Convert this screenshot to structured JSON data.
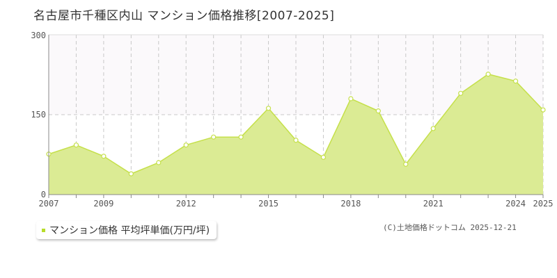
{
  "chart_data": {
    "type": "area",
    "title": "名古屋市千種区内山 マンション価格推移[2007-2025]",
    "x": [
      2007,
      2008,
      2009,
      2010,
      2011,
      2012,
      2013,
      2014,
      2015,
      2016,
      2017,
      2018,
      2019,
      2020,
      2021,
      2022,
      2023,
      2024,
      2025
    ],
    "x_tick_labels": [
      "2007",
      "2009",
      "2012",
      "2015",
      "2018",
      "2021",
      "2024",
      "2025"
    ],
    "y_tick_labels": [
      "0",
      "150",
      "300"
    ],
    "ylim": [
      0,
      300
    ],
    "series": [
      {
        "name": "マンション価格 平均坪単価(万円/坪)",
        "values": [
          76,
          93,
          72,
          39,
          60,
          93,
          108,
          108,
          162,
          102,
          70,
          180,
          157,
          57,
          124,
          190,
          226,
          213,
          159
        ]
      }
    ],
    "colors": {
      "line": "#c5e04a",
      "fill": "#dbeb94",
      "marker": "#b7dc2a"
    },
    "legend_position": "bottom-left"
  },
  "source": "(C)土地価格ドットコム 2025-12-21"
}
